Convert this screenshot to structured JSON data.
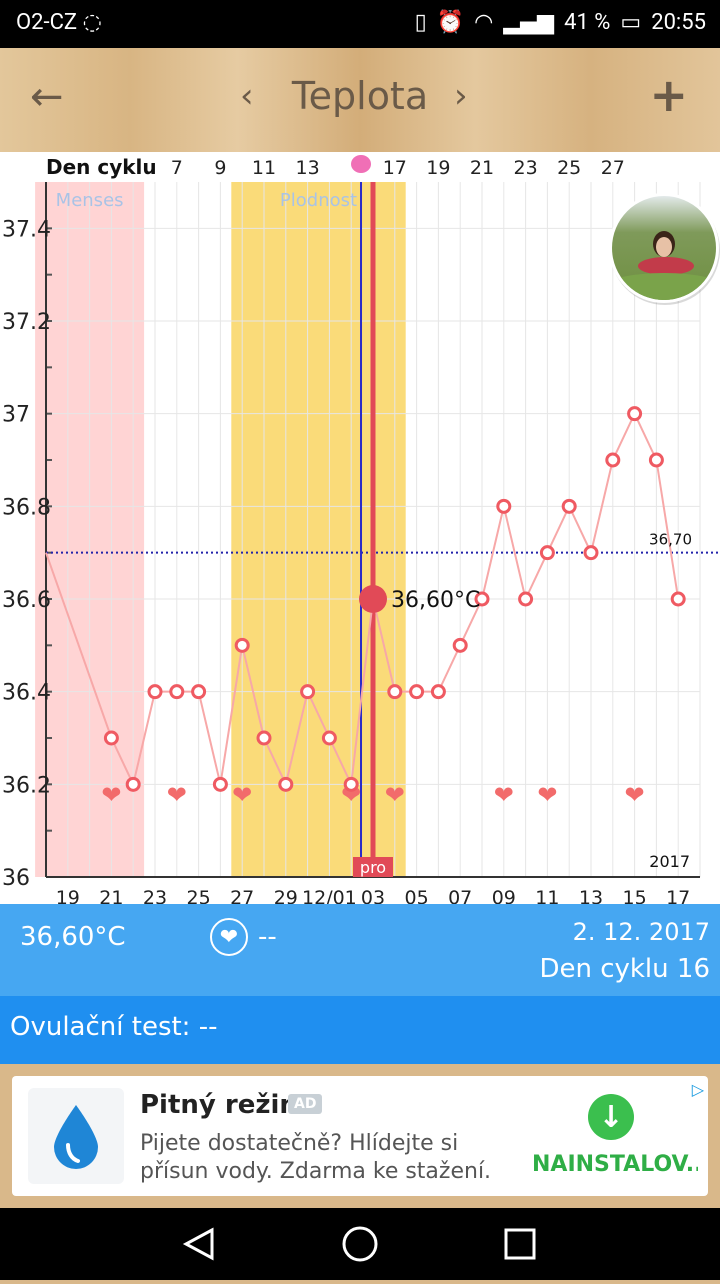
{
  "status": {
    "carrier": "O2-CZ",
    "battery": "41 %",
    "time": "20:55"
  },
  "header": {
    "title": "Teplota"
  },
  "chart_data": {
    "type": "line",
    "top_label": "Den cyklu",
    "top_ticks": [
      "7",
      "9",
      "11",
      "13",
      "17",
      "19",
      "21",
      "23",
      "25",
      "27"
    ],
    "top_tick_days": [
      7,
      9,
      11,
      13,
      17,
      19,
      21,
      23,
      25,
      27
    ],
    "x_ticks": [
      "19",
      "21",
      "23",
      "25",
      "27",
      "29",
      "12/01",
      "03",
      "05",
      "07",
      "09",
      "11",
      "13",
      "15",
      "17"
    ],
    "y_ticks": [
      "37.4",
      "37.2",
      "37",
      "36.8",
      "36.6",
      "36.4",
      "36.2",
      "36"
    ],
    "y_tick_values": [
      37.4,
      37.2,
      37.0,
      36.8,
      36.6,
      36.4,
      36.2,
      36.0
    ],
    "ylim": [
      36.0,
      37.5
    ],
    "day_range": [
      1,
      31
    ],
    "cycle_days": [
      1,
      2,
      3,
      4,
      5,
      6,
      7,
      8,
      9,
      10,
      11,
      12,
      13,
      14,
      15,
      16,
      17,
      18,
      19,
      20,
      21,
      22,
      23,
      24,
      25,
      26,
      27,
      28,
      29,
      30,
      31
    ],
    "temperatures": [
      36.7,
      null,
      null,
      36.3,
      36.2,
      36.4,
      36.4,
      36.4,
      36.2,
      36.5,
      36.3,
      36.2,
      36.4,
      36.3,
      36.2,
      36.6,
      36.4,
      36.4,
      36.4,
      36.5,
      36.6,
      36.8,
      36.6,
      36.7,
      36.8,
      36.7,
      36.9,
      37.0,
      36.9,
      36.6,
      null
    ],
    "hearts_days": [
      4,
      7,
      10,
      15,
      17,
      22,
      24,
      28
    ],
    "menses": {
      "label": "Menses",
      "start_day": 0.5,
      "end_day": 5.5
    },
    "fertile": {
      "label": "Plodnost",
      "start_day": 9.5,
      "end_day": 17.5
    },
    "ovulation_day": 15.45,
    "selected_day": 16,
    "selected_label": "36,60°C",
    "coverline": {
      "value": 36.7,
      "label": "36,70"
    },
    "year_label": "2017",
    "tag_label": "pro",
    "grid": true,
    "colors": {
      "line": "#f7a8a8",
      "point": "#ef5a62",
      "menses": "#ffd4d4",
      "fertile": "#fadb79",
      "ovulation": "#2a2ac8",
      "selected": "#e14a57"
    }
  },
  "info": {
    "temperature": "36,60°C",
    "heart": "--",
    "date": "2. 12. 2017",
    "cycle_day": "Den cyklu 16"
  },
  "ovulation_test": {
    "label": "Ovulační test: --"
  },
  "ad": {
    "name": "Pitný režim",
    "badge": "AD",
    "description": "Pijete dostatečně? Hlídejte si přísun vody. Zdarma ke stažení.",
    "cta": "NAINSTALOV..."
  }
}
